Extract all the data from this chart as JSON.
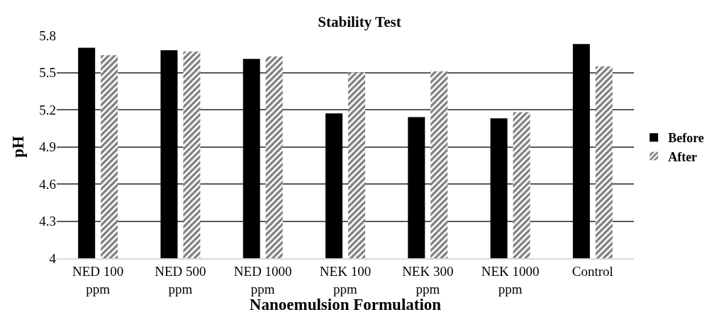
{
  "chart_data": {
    "type": "bar",
    "title": "Stability Test",
    "xlabel": "Nanoemulsion Formulation",
    "ylabel": "pH",
    "categories": [
      "NED 100 ppm",
      "NED 500 ppm",
      "NED 1000 ppm",
      "NEK 100 ppm",
      "NEK 300 ppm",
      "NEK 1000 ppm",
      "Control"
    ],
    "series": [
      {
        "name": "Before",
        "color": "#000000",
        "values": [
          5.7,
          5.68,
          5.61,
          5.17,
          5.14,
          5.13,
          5.73
        ]
      },
      {
        "name": "After",
        "color": "#000000",
        "values": [
          5.64,
          5.67,
          5.63,
          5.5,
          5.51,
          5.18,
          5.55
        ]
      }
    ],
    "ylim": [
      4,
      5.8
    ],
    "yticks": [
      {
        "value": 4,
        "label": "4"
      },
      4.3,
      4.6,
      4.9,
      5.2,
      5.5,
      5.8
    ],
    "grid": "y",
    "legend": "right"
  }
}
